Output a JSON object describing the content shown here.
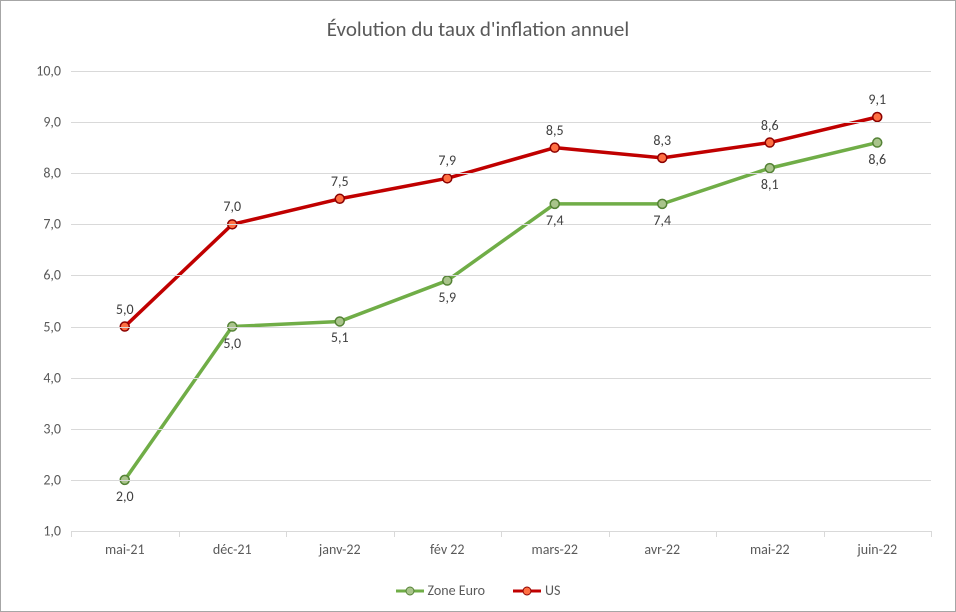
{
  "chart": {
    "type": "line",
    "title": "Évolution du taux d'inflation annuel",
    "title_fontsize": 21,
    "title_color": "#595959",
    "background_color": "#ffffff",
    "border_color": "#a6a6a6",
    "grid_color": "#d9d9d9",
    "axis_text_color": "#595959",
    "label_fontsize": 14,
    "ylim": [
      1.0,
      10.0
    ],
    "yticks": [
      "1,0",
      "2,0",
      "3,0",
      "4,0",
      "5,0",
      "6,0",
      "7,0",
      "8,0",
      "9,0",
      "10,0"
    ],
    "ytick_values": [
      1.0,
      2.0,
      3.0,
      4.0,
      5.0,
      6.0,
      7.0,
      8.0,
      9.0,
      10.0
    ],
    "categories": [
      "mai-21",
      "déc-21",
      "janv-22",
      "fév 22",
      "mars-22",
      "avr-22",
      "mai-22",
      "juin-22"
    ],
    "series": [
      {
        "name": "Zone Euro",
        "values": [
          2.0,
          5.0,
          5.1,
          5.9,
          7.4,
          7.4,
          8.1,
          8.6
        ],
        "labels": [
          "2,0",
          "5,0",
          "5,1",
          "5,9",
          "7,4",
          "7,4",
          "8,1",
          "8,6"
        ],
        "label_position": "below",
        "line_color": "#70ad47",
        "marker_fill": "#a9c48b",
        "marker_border": "#548235",
        "line_width": 3.5,
        "marker_size": 9
      },
      {
        "name": "US",
        "values": [
          5.0,
          7.0,
          7.5,
          7.9,
          8.5,
          8.3,
          8.6,
          9.1
        ],
        "labels": [
          "5,0",
          "7,0",
          "7,5",
          "7,9",
          "8,5",
          "8,3",
          "8,6",
          "9,1"
        ],
        "label_position": "above",
        "line_color": "#c00000",
        "marker_fill": "#ff7043",
        "marker_border": "#8b0000",
        "line_width": 3.5,
        "marker_size": 9
      }
    ]
  }
}
